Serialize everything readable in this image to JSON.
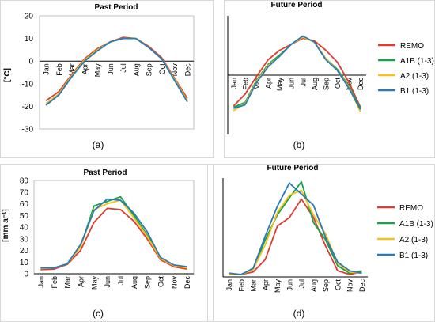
{
  "months": [
    "Jan",
    "Feb",
    "Mar",
    "Apr",
    "May",
    "Jun",
    "Jul",
    "Aug",
    "Sep",
    "Oct",
    "Nov",
    "Dec"
  ],
  "legend": [
    {
      "name": "REMO",
      "color": "#e03c31"
    },
    {
      "name": "A1B (1-3)",
      "color": "#18a24a"
    },
    {
      "name": "A2 (1-3)",
      "color": "#f5c218"
    },
    {
      "name": "B1 (1-3)",
      "color": "#2a7ab8"
    }
  ],
  "chart_data": [
    {
      "type": "line",
      "panel_label": "(a)",
      "title": "Past Period",
      "ylabel": "[°C]",
      "ylim": [
        -30,
        20
      ],
      "yticks": [
        20,
        10,
        0,
        -10,
        -20,
        -30
      ],
      "categories": [
        "Jan",
        "Feb",
        "Mar",
        "Apr",
        "May",
        "Jun",
        "Jul",
        "Aug",
        "Sep",
        "Oct",
        "Nov",
        "Dec"
      ],
      "series": [
        {
          "name": "REMO",
          "color": "#e03c31",
          "values": [
            -17.5,
            -13.5,
            -6.0,
            1.0,
            5.5,
            8.5,
            10.5,
            10.0,
            6.5,
            1.5,
            -7.5,
            -16.5
          ]
        },
        {
          "name": "A1B (1-3)",
          "color": "#18a24a",
          "values": [
            -19.0,
            -14.5,
            -6.5,
            0.5,
            5.0,
            8.5,
            10.0,
            10.0,
            6.0,
            1.0,
            -8.0,
            -17.5
          ]
        },
        {
          "name": "A2 (1-3)",
          "color": "#f5c218",
          "values": [
            -19.0,
            -14.5,
            -6.5,
            0.5,
            5.0,
            8.5,
            10.0,
            10.0,
            6.0,
            1.0,
            -8.0,
            -17.5
          ]
        },
        {
          "name": "B1 (1-3)",
          "color": "#2a7ab8",
          "values": [
            -19.5,
            -15.0,
            -7.0,
            0.0,
            4.5,
            8.5,
            10.0,
            10.0,
            6.0,
            1.0,
            -8.5,
            -18.0
          ]
        }
      ]
    },
    {
      "type": "line",
      "panel_label": "(b)",
      "title": "Future Period",
      "ylabel": "",
      "ylim": [
        -30,
        20
      ],
      "yticks": [
        20,
        10,
        0,
        -10,
        -20,
        -30
      ],
      "categories": [
        "Jan",
        "Feb",
        "Mar",
        "Apr",
        "May",
        "Jun",
        "Jul",
        "Aug",
        "Sep",
        "Oct",
        "Nov",
        "Dec"
      ],
      "series": [
        {
          "name": "REMO",
          "color": "#e03c31",
          "values": [
            -18.0,
            -13.0,
            -5.5,
            1.5,
            5.5,
            8.0,
            10.5,
            9.5,
            5.5,
            0.5,
            -8.0,
            -18.5
          ]
        },
        {
          "name": "A1B (1-3)",
          "color": "#18a24a",
          "values": [
            -18.5,
            -16.5,
            -7.0,
            -0.5,
            3.5,
            8.0,
            11.0,
            9.0,
            2.0,
            -2.5,
            -9.5,
            -19.0
          ]
        },
        {
          "name": "A2 (1-3)",
          "color": "#f5c218",
          "values": [
            -20.0,
            -17.0,
            -7.5,
            -1.0,
            3.0,
            8.0,
            11.0,
            9.0,
            2.0,
            -3.0,
            -10.0,
            -20.5
          ]
        },
        {
          "name": "B1 (1-3)",
          "color": "#2a7ab8",
          "values": [
            -19.0,
            -17.5,
            -8.0,
            -1.5,
            3.0,
            8.0,
            11.5,
            9.0,
            1.5,
            -3.0,
            -10.5,
            -19.5
          ]
        }
      ]
    },
    {
      "type": "line",
      "panel_label": "(c)",
      "title": "Past Period",
      "ylabel": "[mm a⁻¹]",
      "ylim": [
        0,
        80
      ],
      "yticks": [
        80,
        70,
        60,
        50,
        40,
        30,
        20,
        10,
        0
      ],
      "categories": [
        "Jan",
        "Feb",
        "Mar",
        "Apr",
        "May",
        "Jun",
        "Jul",
        "Aug",
        "Sep",
        "Oct",
        "Nov",
        "Dec"
      ],
      "series": [
        {
          "name": "REMO",
          "color": "#e03c31",
          "values": [
            3.5,
            4.0,
            8.0,
            20.0,
            44.0,
            56.0,
            55.0,
            45.0,
            30.0,
            12.0,
            6.0,
            4.0
          ]
        },
        {
          "name": "A1B (1-3)",
          "color": "#18a24a",
          "values": [
            4.5,
            5.0,
            8.5,
            23.0,
            58.0,
            62.0,
            66.0,
            50.0,
            33.0,
            14.0,
            7.0,
            5.5
          ]
        },
        {
          "name": "A2 (1-3)",
          "color": "#f5c218",
          "values": [
            4.5,
            5.0,
            8.5,
            23.0,
            55.0,
            60.0,
            63.0,
            48.0,
            32.0,
            13.0,
            7.0,
            5.0
          ]
        },
        {
          "name": "B1 (1-3)",
          "color": "#2a7ab8",
          "values": [
            5.0,
            5.0,
            8.5,
            25.0,
            54.0,
            64.0,
            63.0,
            52.0,
            36.0,
            14.0,
            7.5,
            6.0
          ]
        }
      ]
    },
    {
      "type": "line",
      "panel_label": "(d)",
      "title": "Future Period",
      "ylabel": "",
      "ylim": [
        0,
        80
      ],
      "yticks": [],
      "categories": [
        "Jan",
        "Feb",
        "Mar",
        "Apr",
        "May",
        "Jun",
        "Jul",
        "Aug",
        "Sep",
        "Oct",
        "Nov",
        "Dec"
      ],
      "series": [
        {
          "name": "REMO",
          "color": "#e03c31",
          "values": [
            2.0,
            2.0,
            4.0,
            14.0,
            41.0,
            48.0,
            63.0,
            48.0,
            25.0,
            5.0,
            2.0,
            4.0
          ]
        },
        {
          "name": "A1B (1-3)",
          "color": "#18a24a",
          "values": [
            2.0,
            2.0,
            6.0,
            30.0,
            50.0,
            64.0,
            77.0,
            44.0,
            30.0,
            9.0,
            3.0,
            5.0
          ]
        },
        {
          "name": "A2 (1-3)",
          "color": "#f5c218",
          "values": [
            2.0,
            2.0,
            6.0,
            26.0,
            52.0,
            66.0,
            70.0,
            50.0,
            35.0,
            11.0,
            4.0,
            3.0
          ]
        },
        {
          "name": "B1 (1-3)",
          "color": "#2a7ab8",
          "values": [
            3.0,
            2.0,
            7.0,
            33.0,
            57.0,
            76.0,
            67.0,
            58.0,
            32.0,
            12.0,
            5.0,
            3.0
          ]
        }
      ]
    }
  ]
}
